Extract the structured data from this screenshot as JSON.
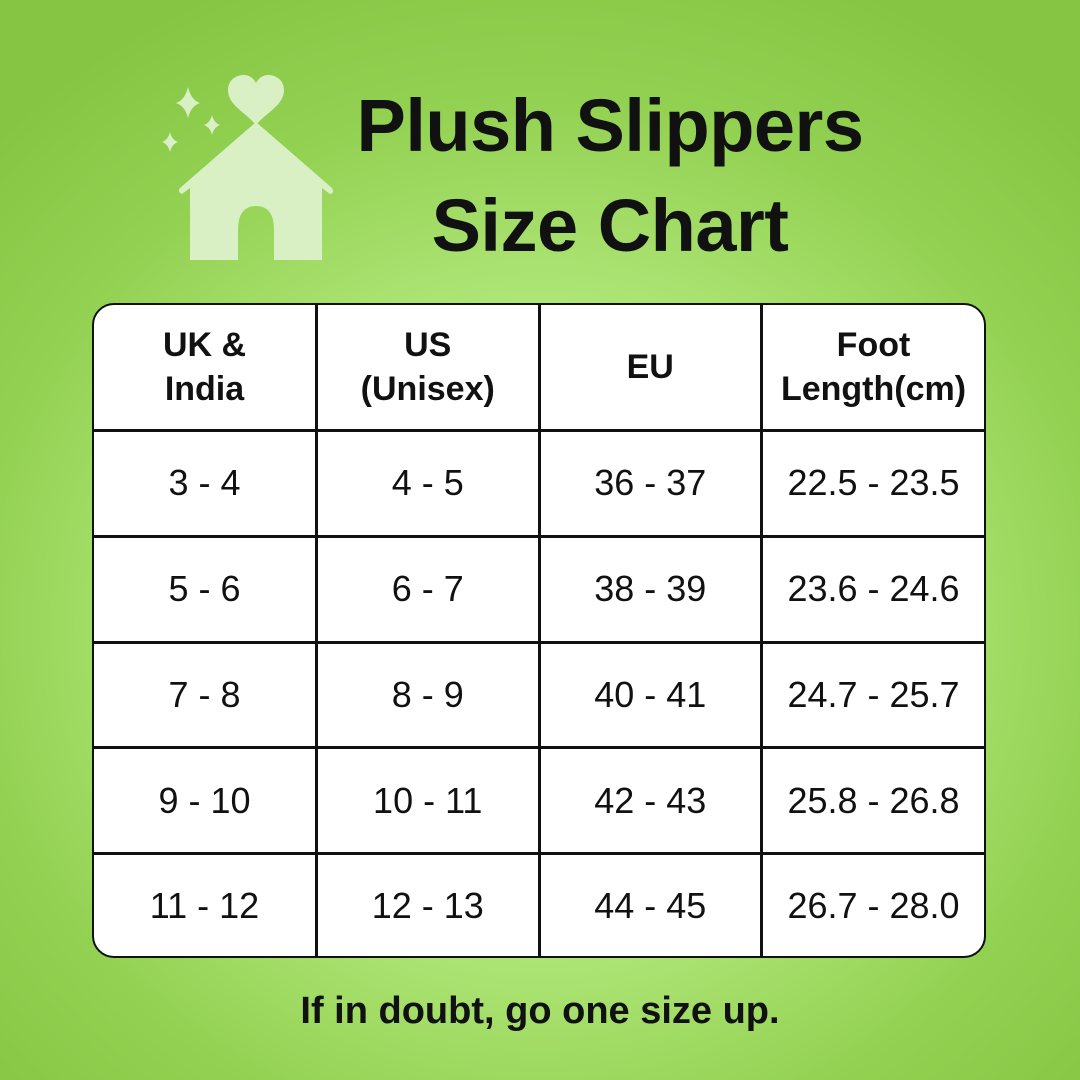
{
  "title": {
    "line1": "Plush Slippers",
    "line2": "Size Chart"
  },
  "logo": {
    "icon": "house-with-heart-icon",
    "color": "#d6f0c0"
  },
  "table": {
    "headers": [
      {
        "line1": "UK &",
        "line2": "India"
      },
      {
        "line1": "US",
        "line2": "(Unisex)"
      },
      {
        "line1": "EU",
        "line2": ""
      },
      {
        "line1": "Foot",
        "line2": "Length(cm)"
      }
    ],
    "rows": [
      [
        "3 - 4",
        "4 - 5",
        "36 - 37",
        "22.5 - 23.5"
      ],
      [
        "5 - 6",
        "6 - 7",
        "38 - 39",
        "23.6 - 24.6"
      ],
      [
        "7 - 8",
        "8 - 9",
        "40 - 41",
        "24.7 - 25.7"
      ],
      [
        "9 - 10",
        "10 - 11",
        "42 - 43",
        "25.8 - 26.8"
      ],
      [
        "11 - 12",
        "12 - 13",
        "44 - 45",
        "26.7 - 28.0"
      ]
    ]
  },
  "footer": "If in doubt, go one size up.",
  "colors": {
    "background_center": "#cdf7a0",
    "background_edge": "#86c544",
    "text": "#111111"
  }
}
